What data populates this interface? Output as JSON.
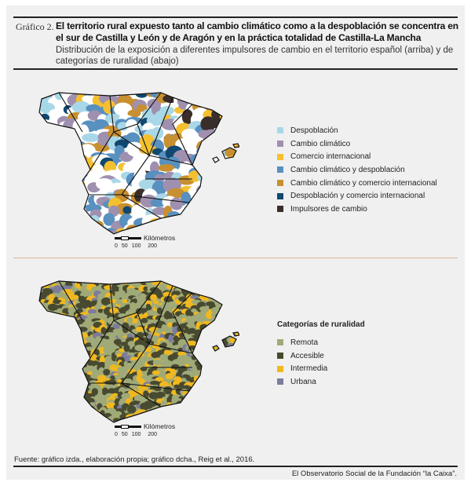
{
  "caption": {
    "label": "Gráfico 2.",
    "title": "El territorio rural expuesto tanto al cambio climático como a la despoblación se concentra en el sur de Castilla y León y de Aragón y en la práctica totalidad de Castilla-La Mancha",
    "subtitle": "Distribución de la exposición a diferentes impulsores de cambio en el territorio español (arriba) y de categorías de ruralidad (abajo)"
  },
  "top_map": {
    "legend": [
      {
        "label": "Despoblación",
        "color": "#a8d8e8"
      },
      {
        "label": "Cambio climático",
        "color": "#a090b0"
      },
      {
        "label": "Comercio internacional",
        "color": "#f5c030"
      },
      {
        "label": "Cambio climático y despoblación",
        "color": "#5890c0"
      },
      {
        "label": "Cambio climático y comercio internacional",
        "color": "#c89030"
      },
      {
        "label": "Despoblación y comercio internacional",
        "color": "#104870"
      },
      {
        "label": "Impulsores de cambio",
        "color": "#3a2e2a"
      }
    ],
    "scale": {
      "unit": "Kilómetros",
      "ticks": [
        "0",
        "50",
        "100",
        "200"
      ]
    }
  },
  "bottom_map": {
    "legend_title": "Categorías de ruralidad",
    "legend": [
      {
        "label": "Remota",
        "color": "#a0aa78"
      },
      {
        "label": "Accesible",
        "color": "#484a30"
      },
      {
        "label": "Intermedia",
        "color": "#f0b820"
      },
      {
        "label": "Urbana",
        "color": "#7c7c9c"
      }
    ],
    "scale": {
      "unit": "Kilómetros",
      "ticks": [
        "0",
        "50",
        "100",
        "200"
      ]
    }
  },
  "source": "Fuente: gráfico izda., elaboración propia; gráfico dcha., Reig et al., 2016.",
  "footer": "El Observatorio Social de la Fundación “la Caixa”."
}
